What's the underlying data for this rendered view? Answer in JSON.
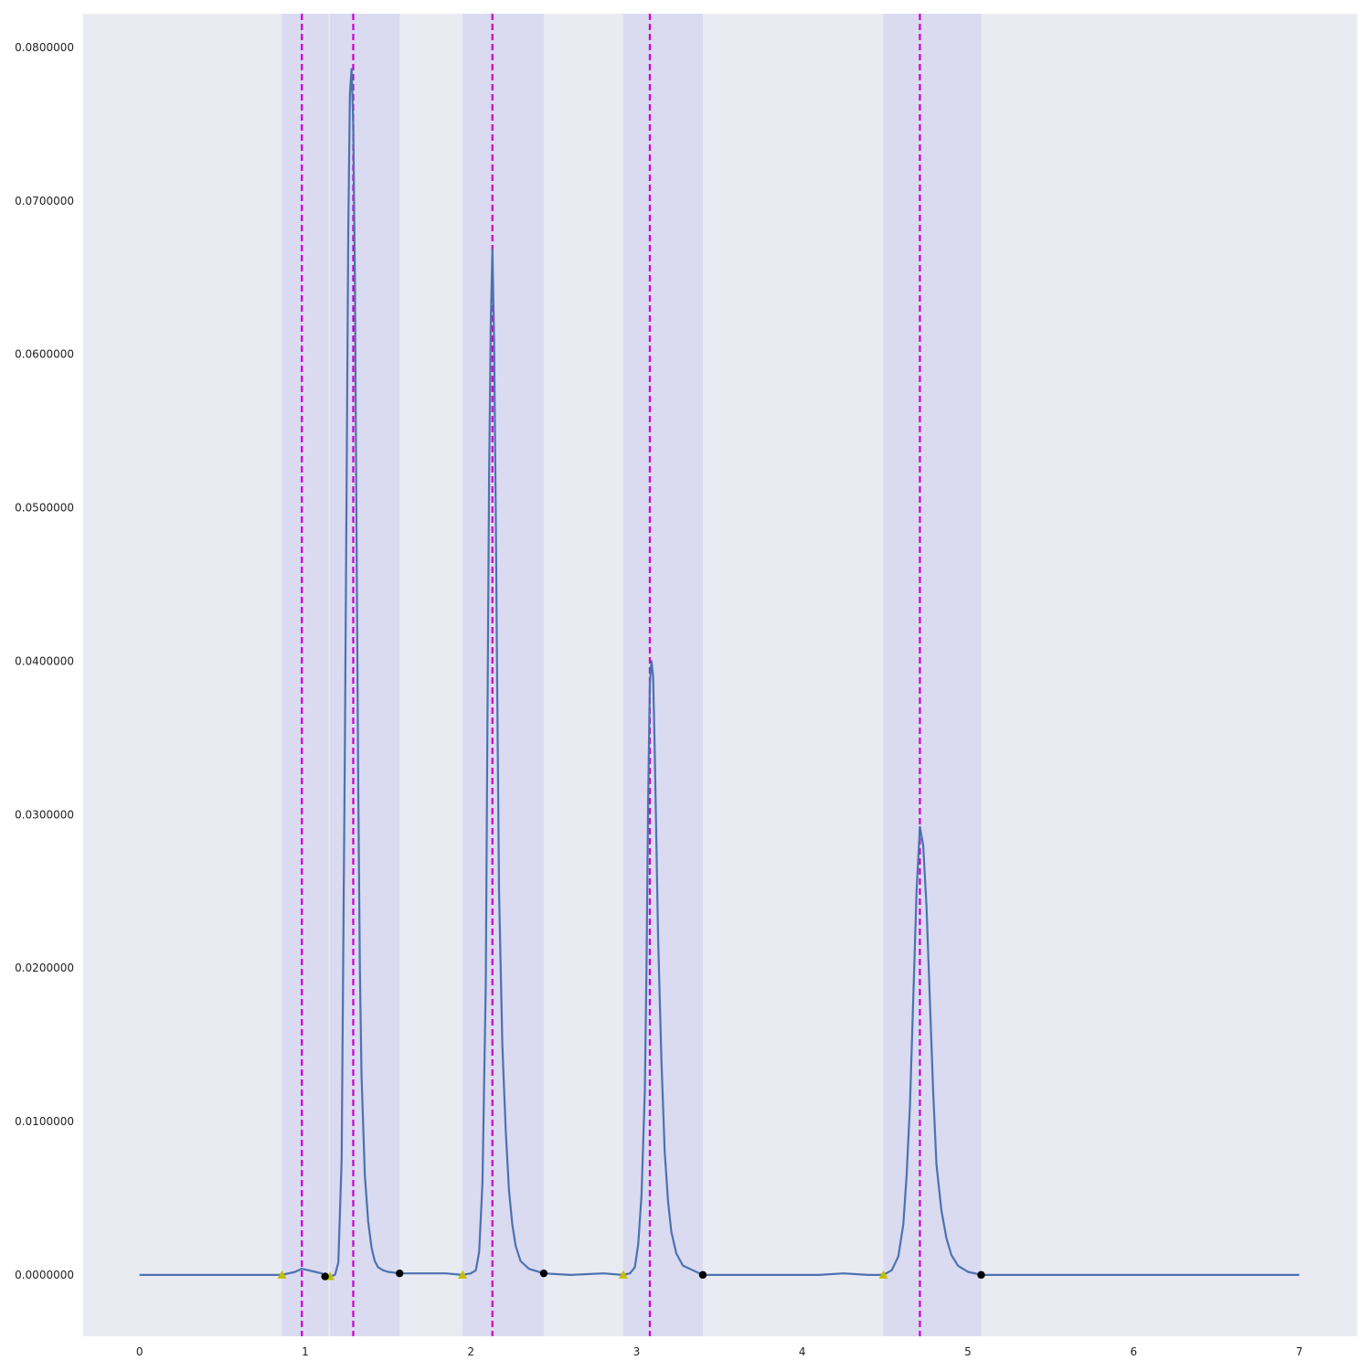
{
  "chart_data": {
    "type": "line",
    "title": "",
    "xlabel": "",
    "ylabel": "",
    "xlim": [
      -0.34,
      7.35
    ],
    "ylim": [
      -0.004,
      0.0822
    ],
    "grid": false,
    "x_ticks": [
      0,
      1,
      2,
      3,
      4,
      5,
      6,
      7
    ],
    "y_ticks": [
      0.0,
      0.01,
      0.02,
      0.03,
      0.04,
      0.05,
      0.06,
      0.07,
      0.08
    ],
    "x_tick_labels": [
      "0",
      "1",
      "2",
      "3",
      "4",
      "5",
      "6",
      "7"
    ],
    "y_tick_labels": [
      "0.0000000",
      "0.0100000",
      "0.0200000",
      "0.0300000",
      "0.0400000",
      "0.0500000",
      "0.0600000",
      "0.0700000",
      "0.0800000"
    ],
    "shaded_regions": [
      {
        "x0": 0.86,
        "x1": 1.14
      },
      {
        "x0": 1.15,
        "x1": 1.57
      },
      {
        "x0": 1.95,
        "x1": 2.44
      },
      {
        "x0": 2.92,
        "x1": 3.4
      },
      {
        "x0": 4.49,
        "x1": 5.08
      }
    ],
    "peak_lines_x": [
      0.98,
      1.29,
      2.13,
      3.08,
      4.71
    ],
    "start_markers": [
      {
        "x": 0.86,
        "y": 0.0
      },
      {
        "x": 1.15,
        "y": -0.0001
      },
      {
        "x": 1.95,
        "y": 0.0
      },
      {
        "x": 2.92,
        "y": 0.0
      },
      {
        "x": 4.49,
        "y": 0.0
      }
    ],
    "end_markers": [
      {
        "x": 1.12,
        "y": -0.0001
      },
      {
        "x": 1.57,
        "y": 0.0001
      },
      {
        "x": 2.44,
        "y": 0.0001
      },
      {
        "x": 3.4,
        "y": 0.0
      },
      {
        "x": 5.08,
        "y": 0.0
      }
    ],
    "series": [
      {
        "x": [
          0.0,
          0.2,
          0.4,
          0.6,
          0.8,
          0.86,
          0.9,
          0.94,
          0.98,
          1.02,
          1.06,
          1.1,
          1.12,
          1.15,
          1.18,
          1.2,
          1.22,
          1.24,
          1.26,
          1.27,
          1.28,
          1.29,
          1.3,
          1.31,
          1.32,
          1.33,
          1.34,
          1.36,
          1.38,
          1.4,
          1.42,
          1.44,
          1.47,
          1.5,
          1.57,
          1.7,
          1.85,
          1.95,
          2.0,
          2.03,
          2.05,
          2.07,
          2.09,
          2.1,
          2.11,
          2.12,
          2.13,
          2.14,
          2.15,
          2.16,
          2.17,
          2.19,
          2.21,
          2.23,
          2.25,
          2.27,
          2.3,
          2.35,
          2.44,
          2.6,
          2.8,
          2.92,
          2.96,
          2.99,
          3.01,
          3.03,
          3.05,
          3.06,
          3.07,
          3.08,
          3.09,
          3.1,
          3.11,
          3.13,
          3.15,
          3.17,
          3.19,
          3.21,
          3.24,
          3.28,
          3.4,
          3.6,
          3.8,
          4.0,
          4.1,
          4.25,
          4.4,
          4.49,
          4.54,
          4.58,
          4.61,
          4.63,
          4.65,
          4.67,
          4.69,
          4.71,
          4.73,
          4.75,
          4.77,
          4.79,
          4.81,
          4.84,
          4.87,
          4.9,
          4.94,
          5.0,
          5.08,
          5.5,
          6.0,
          6.5,
          7.0
        ],
        "y": [
          0.0,
          0.0,
          0.0,
          0.0,
          0.0,
          0.0,
          0.0001,
          0.0002,
          0.0004,
          0.0003,
          0.0002,
          0.0001,
          -0.0001,
          -0.0001,
          0.0,
          0.0008,
          0.0075,
          0.035,
          0.068,
          0.077,
          0.0786,
          0.075,
          0.065,
          0.048,
          0.032,
          0.02,
          0.013,
          0.0065,
          0.0035,
          0.0018,
          0.0009,
          0.0005,
          0.0003,
          0.0002,
          0.0001,
          0.0001,
          0.0001,
          0.0,
          0.0001,
          0.0003,
          0.0015,
          0.006,
          0.019,
          0.036,
          0.052,
          0.062,
          0.0668,
          0.061,
          0.05,
          0.037,
          0.025,
          0.015,
          0.0095,
          0.0055,
          0.0033,
          0.0019,
          0.0009,
          0.0004,
          0.0001,
          0.0,
          0.0001,
          0.0,
          0.0001,
          0.0005,
          0.002,
          0.0052,
          0.012,
          0.02,
          0.031,
          0.0385,
          0.04,
          0.039,
          0.034,
          0.022,
          0.014,
          0.008,
          0.0048,
          0.0028,
          0.0014,
          0.0006,
          0.0,
          0.0,
          0.0,
          0.0,
          0.0,
          0.0001,
          0.0,
          0.0,
          0.0003,
          0.0012,
          0.0033,
          0.0065,
          0.011,
          0.018,
          0.025,
          0.0292,
          0.028,
          0.024,
          0.018,
          0.012,
          0.0072,
          0.0042,
          0.0024,
          0.0013,
          0.0006,
          0.0002,
          0.0,
          0.0,
          0.0,
          0.0,
          0.0
        ]
      }
    ],
    "colors": {
      "plot_background": "#eaeaf2",
      "shade": "#c8c8ee",
      "line": "#4c72b0",
      "peak_line": "#cc00cc",
      "start_marker": "#c0c000",
      "end_marker": "#000000",
      "shade_divider": "#ffffff"
    }
  }
}
